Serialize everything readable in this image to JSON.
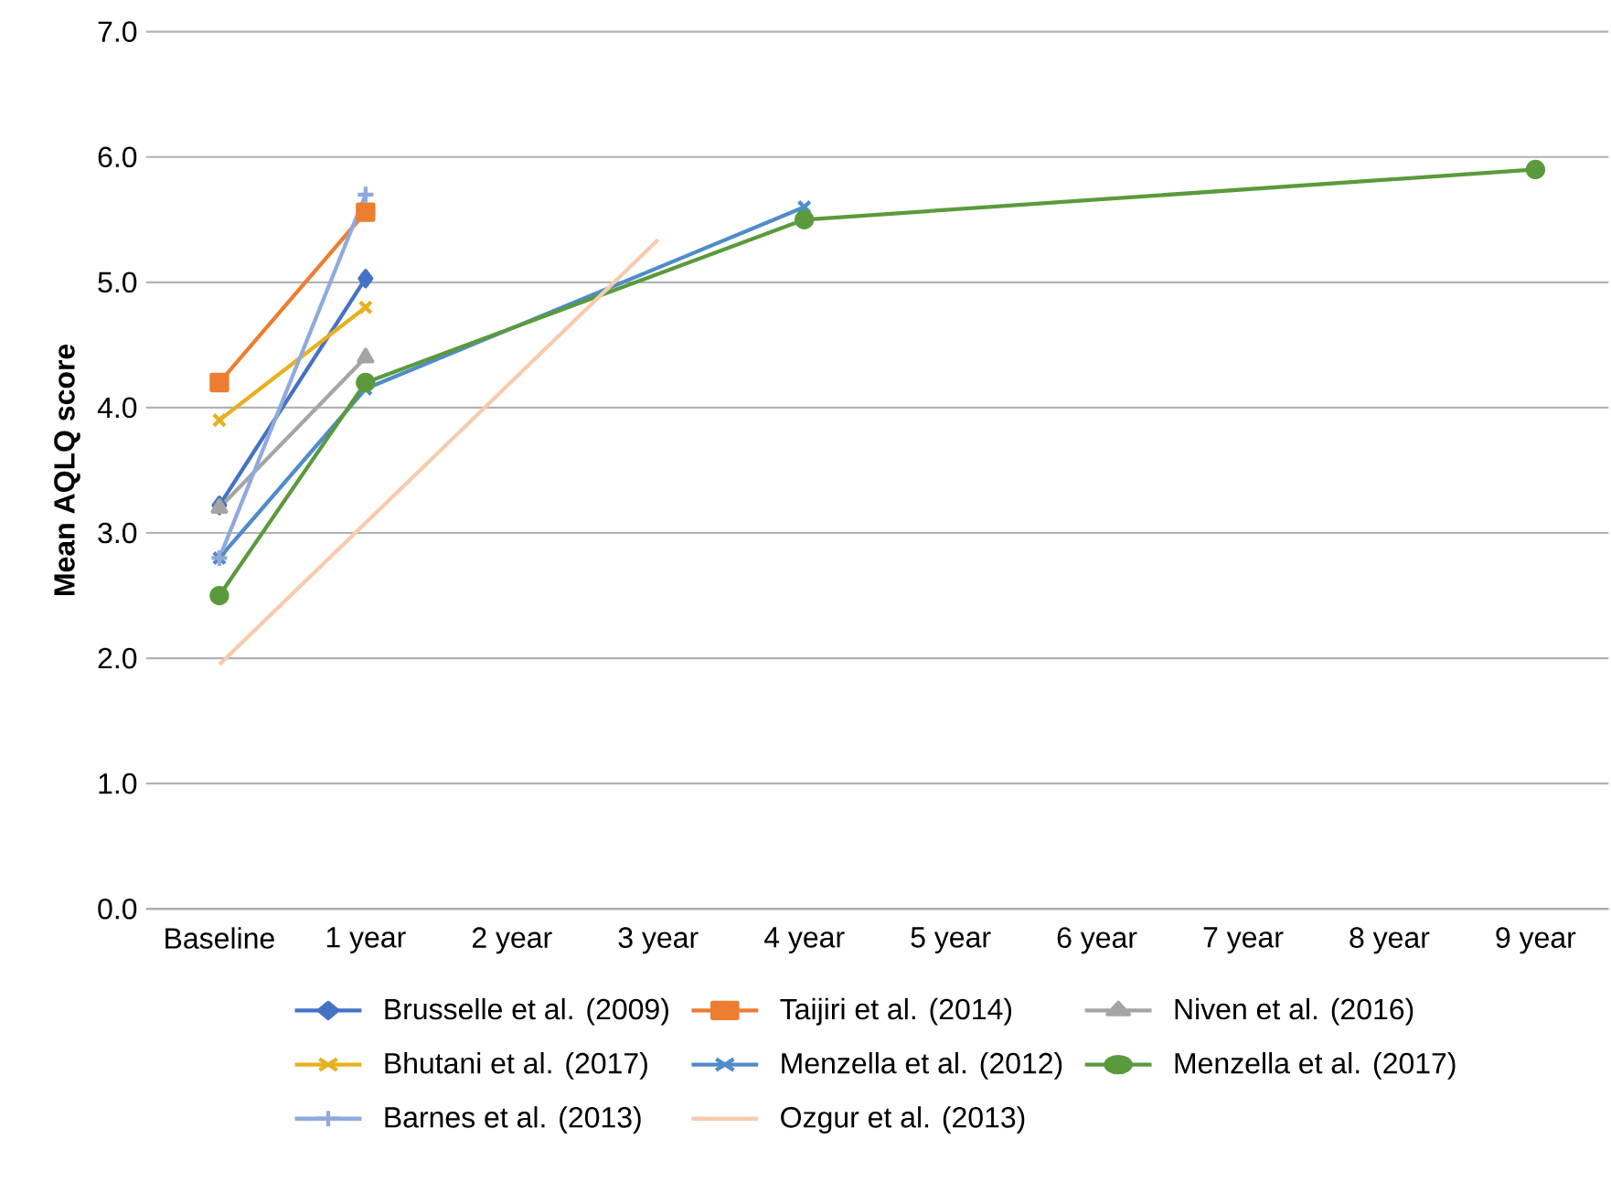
{
  "chart_data": {
    "type": "line",
    "ylabel": "Mean AQLQ score",
    "categories": [
      "Baseline",
      "1 year",
      "2 year",
      "3 year",
      "4 year",
      "5 year",
      "6 year",
      "7 year",
      "8 year",
      "9 year"
    ],
    "ylim": [
      0,
      7
    ],
    "yticks": [
      {
        "value": 0,
        "label": "0.0"
      },
      {
        "value": 1,
        "label": "1.0"
      },
      {
        "value": 2,
        "label": "2.0"
      },
      {
        "value": 3,
        "label": "3.0"
      },
      {
        "value": 4,
        "label": "4.0"
      },
      {
        "value": 5,
        "label": "5.0"
      },
      {
        "value": 6,
        "label": "6.0"
      },
      {
        "value": 7,
        "label": "7.0"
      }
    ],
    "grid": "y",
    "legend": "bottom",
    "series": [
      {
        "name": "Brusselle et al. (2009)",
        "color": "#4472c4",
        "marker": "diamond",
        "values": [
          3.22,
          5.03,
          null,
          null,
          null,
          null,
          null,
          null,
          null,
          null
        ]
      },
      {
        "name": "Taijiri et al. (2014)",
        "color": "#ed7d31",
        "marker": "square",
        "values": [
          4.2,
          5.56,
          null,
          null,
          null,
          null,
          null,
          null,
          null,
          null
        ]
      },
      {
        "name": "Niven et al. (2016)",
        "color": "#a5a5a5",
        "marker": "triangle",
        "values": [
          3.2,
          4.4,
          null,
          null,
          null,
          null,
          null,
          null,
          null,
          null
        ]
      },
      {
        "name": "Bhutani et al. (2017)",
        "color": "#e8b021",
        "marker": "cross",
        "values": [
          3.9,
          4.8,
          null,
          null,
          null,
          null,
          null,
          null,
          null,
          null
        ]
      },
      {
        "name": "Menzella et al. (2012)",
        "color": "#4f8cc9",
        "marker": "cross",
        "values": [
          2.8,
          4.15,
          null,
          null,
          5.6,
          null,
          null,
          null,
          null,
          null
        ]
      },
      {
        "name": "Menzella et al. (2017)",
        "color": "#5b9a3c",
        "marker": "circle",
        "values": [
          2.5,
          4.2,
          null,
          null,
          5.5,
          null,
          null,
          null,
          null,
          5.9
        ]
      },
      {
        "name": "Barnes et al. (2013)",
        "color": "#8faadc",
        "marker": "plus",
        "values": [
          2.8,
          5.7,
          null,
          null,
          null,
          null,
          null,
          null,
          null,
          null
        ]
      },
      {
        "name": "Ozgur et al. (2013)",
        "color": "#f8cbad",
        "marker": "none",
        "values": [
          1.95,
          null,
          null,
          5.34,
          null,
          null,
          null,
          null,
          null,
          null
        ]
      }
    ]
  }
}
